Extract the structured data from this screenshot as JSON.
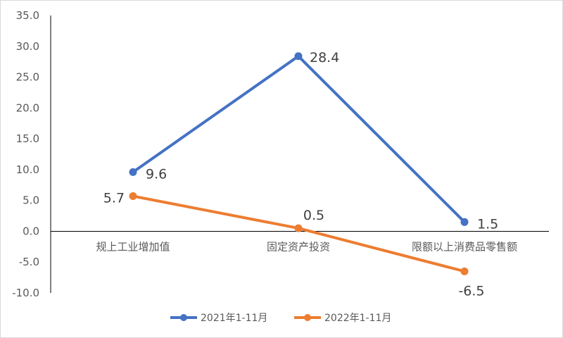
{
  "chart_data": {
    "type": "line",
    "categories": [
      "规上工业增加值",
      "固定资产投资",
      "限额以上消费品零售额"
    ],
    "series": [
      {
        "name": "2021年1-11月",
        "values": [
          9.6,
          28.4,
          1.5
        ],
        "labels": [
          "9.6",
          "28.4",
          "1.5"
        ],
        "color": "#4472C4"
      },
      {
        "name": "2022年1-11月",
        "values": [
          5.7,
          0.5,
          -6.5
        ],
        "labels": [
          "5.7",
          "0.5",
          "-6.5"
        ],
        "color": "#ED7D31"
      }
    ],
    "ylim": [
      -10,
      35
    ],
    "yticks": [
      "35.0",
      "30.0",
      "25.0",
      "20.0",
      "15.0",
      "10.0",
      "5.0",
      "0.0",
      "-5.0",
      "-10.0"
    ],
    "grid": false,
    "legend_position": "bottom"
  }
}
